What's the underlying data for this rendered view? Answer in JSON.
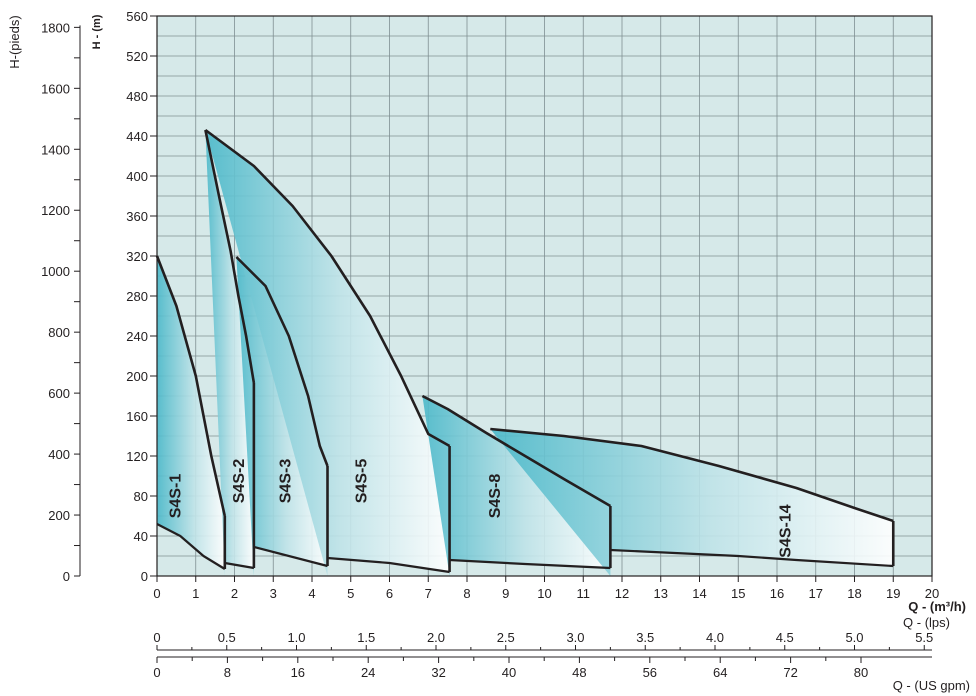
{
  "chart_data": {
    "type": "area",
    "left_axis_label": "H-(pieds)",
    "inner_axis_label": "H - (m)",
    "x_axis_labels": {
      "m3h": "Q  -  (m³/h)",
      "lps": "Q  -  (lps)",
      "usgpm": "Q  -  (US gpm)"
    },
    "x_m3h": {
      "min": 0,
      "max": 20,
      "ticks": [
        "0",
        "1",
        "2",
        "3",
        "4",
        "5",
        "6",
        "7",
        "8",
        "9",
        "10",
        "11",
        "12",
        "13",
        "14",
        "15",
        "16",
        "17",
        "18",
        "19",
        "20"
      ]
    },
    "y_m": {
      "min": 0,
      "max": 560,
      "ticks": [
        "0",
        "40",
        "80",
        "120",
        "160",
        "200",
        "240",
        "280",
        "320",
        "360",
        "400",
        "440",
        "480",
        "520",
        "560"
      ]
    },
    "y_ft": {
      "ticks": [
        "0",
        "200",
        "400",
        "600",
        "800",
        "1000",
        "1200",
        "1400",
        "1600",
        "1800"
      ]
    },
    "x_lps": {
      "ticks": [
        "0",
        "0.5",
        "1.0",
        "1.5",
        "2.0",
        "2.5",
        "3.0",
        "3.5",
        "4.0",
        "4.5",
        "5.0",
        "5.5"
      ]
    },
    "x_usgpm": {
      "ticks": [
        "0",
        "8",
        "16",
        "24",
        "32",
        "40",
        "48",
        "56",
        "64",
        "72",
        "80"
      ]
    },
    "grid": true,
    "colors": {
      "background": "#d6e9e9",
      "grid": "#7f8f92",
      "shade_dark": "#4ab8c9",
      "shade_light": "#ffffff",
      "curve": "#231f20"
    },
    "series": [
      {
        "name": "S4S-1",
        "top": [
          [
            0,
            320
          ],
          [
            0.5,
            270
          ],
          [
            1,
            200
          ],
          [
            1.4,
            120
          ],
          [
            1.75,
            60
          ]
        ],
        "bottom": [
          [
            0,
            52
          ],
          [
            0.6,
            40
          ],
          [
            1.2,
            20
          ],
          [
            1.75,
            7
          ]
        ]
      },
      {
        "name": "S4S-2",
        "top": [
          [
            1.25,
            446
          ],
          [
            1.6,
            380
          ],
          [
            1.9,
            325
          ],
          [
            2.1,
            280
          ],
          [
            2.3,
            240
          ],
          [
            2.5,
            193
          ]
        ],
        "bottom": [
          [
            1.75,
            13
          ],
          [
            2.5,
            8
          ]
        ]
      },
      {
        "name": "S4S-3",
        "top": [
          [
            2.05,
            319
          ],
          [
            2.8,
            290
          ],
          [
            3.4,
            240
          ],
          [
            3.9,
            180
          ],
          [
            4.2,
            130
          ],
          [
            4.4,
            110
          ]
        ],
        "bottom": [
          [
            2.5,
            29
          ],
          [
            4.4,
            10
          ]
        ]
      },
      {
        "name": "S4S-5",
        "top": [
          [
            1.25,
            446
          ],
          [
            2.5,
            410
          ],
          [
            3.5,
            370
          ],
          [
            4.5,
            320
          ],
          [
            5.5,
            260
          ],
          [
            6.3,
            200
          ],
          [
            7,
            142
          ],
          [
            7.55,
            130
          ]
        ],
        "bottom": [
          [
            4.4,
            18
          ],
          [
            6,
            13
          ],
          [
            7.55,
            4
          ]
        ]
      },
      {
        "name": "S4S-8",
        "top": [
          [
            6.85,
            180
          ],
          [
            7.5,
            167
          ],
          [
            8.5,
            143
          ],
          [
            9.5,
            120
          ],
          [
            10.5,
            97
          ],
          [
            11.7,
            70
          ]
        ],
        "bottom": [
          [
            7.55,
            16
          ],
          [
            9.5,
            12
          ],
          [
            11.7,
            8
          ]
        ]
      },
      {
        "name": "S4S-14",
        "top": [
          [
            8.6,
            147
          ],
          [
            10.5,
            140
          ],
          [
            12.5,
            130
          ],
          [
            14.5,
            110
          ],
          [
            16.5,
            88
          ],
          [
            18,
            68
          ],
          [
            19,
            55
          ]
        ],
        "bottom": [
          [
            11.7,
            26
          ],
          [
            15,
            20
          ],
          [
            16.5,
            16
          ],
          [
            19,
            10
          ]
        ]
      }
    ],
    "labels": [
      {
        "text": "S4S-1",
        "x": 0.6,
        "y": 80
      },
      {
        "text": "S4S-2",
        "x": 2.25,
        "y": 95
      },
      {
        "text": "S4S-3",
        "x": 3.45,
        "y": 95
      },
      {
        "text": "S4S-5",
        "x": 5.4,
        "y": 95
      },
      {
        "text": "S4S-8",
        "x": 8.85,
        "y": 80
      },
      {
        "text": "S4S-14",
        "x": 16.35,
        "y": 45
      }
    ]
  }
}
